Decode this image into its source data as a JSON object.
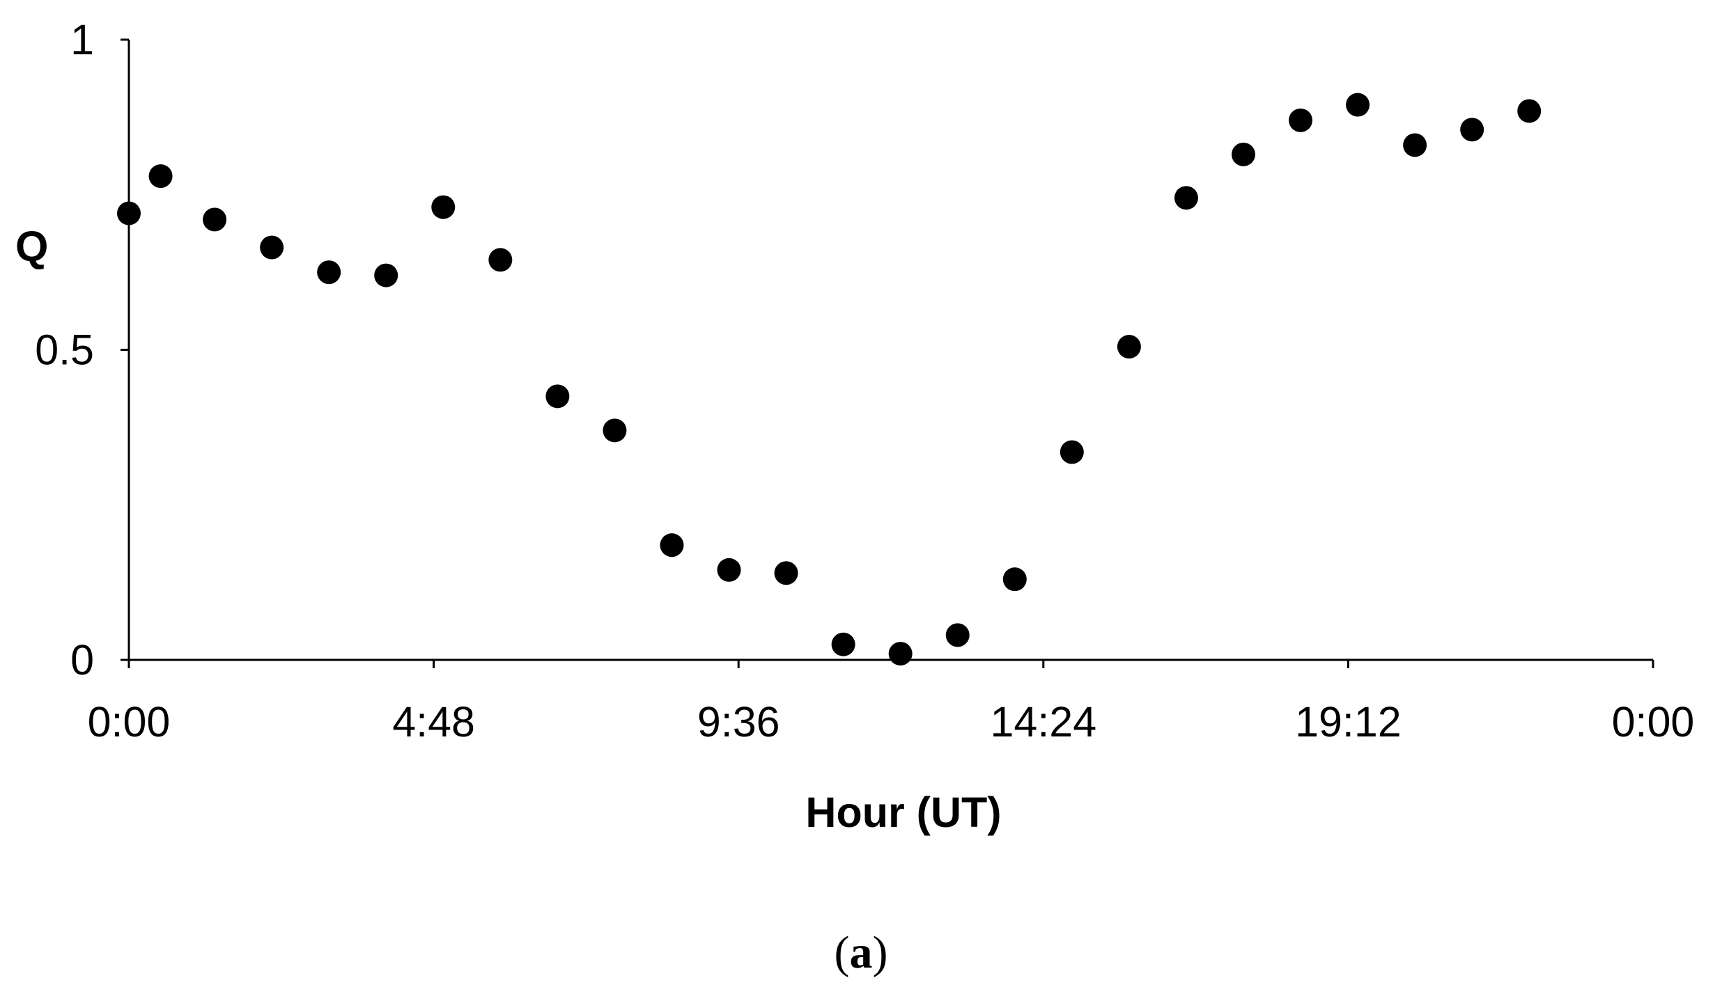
{
  "chart_data": {
    "type": "scatter",
    "ylabel": "Q",
    "xlabel": "Hour (UT)",
    "caption_letter": "a",
    "xlim": [
      "0:00",
      "24:00"
    ],
    "ylim": [
      0,
      1
    ],
    "y_ticks": [
      {
        "value": 0,
        "label": "0"
      },
      {
        "value": 0.5,
        "label": "0.5"
      },
      {
        "value": 1,
        "label": "1"
      }
    ],
    "x_ticks": [
      {
        "value": "0:00",
        "label": "0:00"
      },
      {
        "value": "4:48",
        "label": "4:48"
      },
      {
        "value": "9:36",
        "label": "9:36"
      },
      {
        "value": "14:24",
        "label": "14:24"
      },
      {
        "value": "19:12",
        "label": "19:12"
      },
      {
        "value": "24:00",
        "label": "0:00"
      }
    ],
    "grid": false,
    "legend": "none",
    "marker_color": "#000000",
    "points": [
      {
        "x": "0:00",
        "y": 0.72
      },
      {
        "x": "0:30",
        "y": 0.78
      },
      {
        "x": "1:21",
        "y": 0.71
      },
      {
        "x": "2:15",
        "y": 0.665
      },
      {
        "x": "3:09",
        "y": 0.625
      },
      {
        "x": "4:03",
        "y": 0.62
      },
      {
        "x": "4:57",
        "y": 0.73
      },
      {
        "x": "5:51",
        "y": 0.645
      },
      {
        "x": "6:45",
        "y": 0.425
      },
      {
        "x": "7:39",
        "y": 0.37
      },
      {
        "x": "8:33",
        "y": 0.185
      },
      {
        "x": "9:27",
        "y": 0.145
      },
      {
        "x": "10:21",
        "y": 0.14
      },
      {
        "x": "11:15",
        "y": 0.025
      },
      {
        "x": "12:09",
        "y": 0.01
      },
      {
        "x": "13:03",
        "y": 0.04
      },
      {
        "x": "13:57",
        "y": 0.13
      },
      {
        "x": "14:51",
        "y": 0.335
      },
      {
        "x": "15:45",
        "y": 0.505
      },
      {
        "x": "16:39",
        "y": 0.745
      },
      {
        "x": "17:33",
        "y": 0.815
      },
      {
        "x": "18:27",
        "y": 0.87
      },
      {
        "x": "19:21",
        "y": 0.895
      },
      {
        "x": "20:15",
        "y": 0.83
      },
      {
        "x": "21:09",
        "y": 0.855
      },
      {
        "x": "22:03",
        "y": 0.885
      }
    ]
  }
}
